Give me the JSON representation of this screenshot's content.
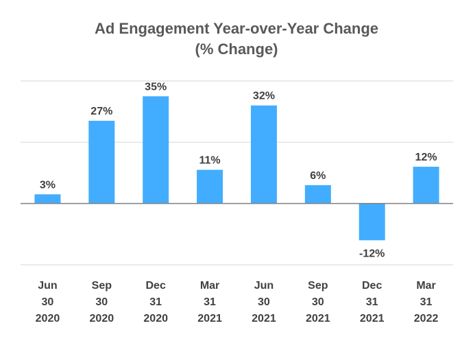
{
  "chart_data": {
    "type": "bar",
    "title": "Ad Engagement Year-over-Year Change",
    "subtitle": "(% Change)",
    "xlabel": "",
    "ylabel": "",
    "ylim": [
      -20,
      40
    ],
    "gridlines": [
      -20,
      0,
      20,
      40
    ],
    "grid": true,
    "legend": "none",
    "bar_color": "#42ADFF",
    "grid_color": "#E3E3E3",
    "zero_line_color": "#7F7F7F",
    "categories": [
      [
        "Jun",
        "30",
        "2020"
      ],
      [
        "Sep",
        "30",
        "2020"
      ],
      [
        "Dec",
        "31",
        "2020"
      ],
      [
        "Mar",
        "31",
        "2021"
      ],
      [
        "Jun",
        "30",
        "2021"
      ],
      [
        "Sep",
        "30",
        "2021"
      ],
      [
        "Dec",
        "31",
        "2021"
      ],
      [
        "Mar",
        "31",
        "2022"
      ]
    ],
    "values": [
      3,
      27,
      35,
      11,
      32,
      6,
      -12,
      12
    ],
    "data_labels": [
      "3%",
      "27%",
      "35%",
      "11%",
      "32%",
      "6%",
      "-12%",
      "12%"
    ]
  }
}
